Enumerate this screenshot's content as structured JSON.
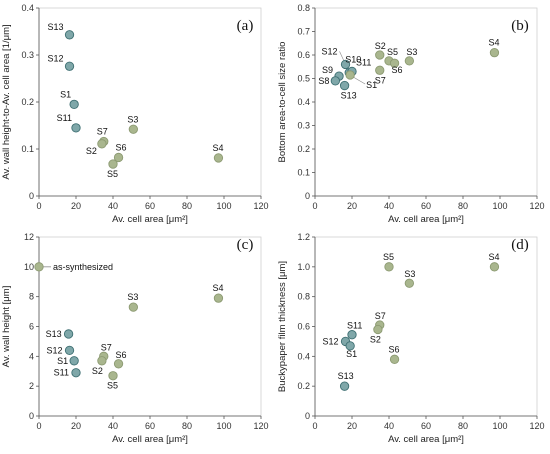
{
  "chart_data": [
    {
      "type": "scatter",
      "panel_label": "(a)",
      "xlabel": "Av. cell area [μm²]",
      "ylabel": "Av. wall height-to-Av. cell area [1/μm]",
      "xlim": [
        0,
        120
      ],
      "ylim": [
        0,
        0.4
      ],
      "xticks": [
        "0",
        "20",
        "40",
        "60",
        "80",
        "100",
        "120"
      ],
      "yticks": [
        "0",
        "0.1",
        "0.2",
        "0.3",
        "0.4"
      ],
      "grid": false,
      "series": [
        {
          "color": "#7fa7a9",
          "points": [
            {
              "label": "S13",
              "x": 16.5,
              "y": 0.343
            },
            {
              "label": "S12",
              "x": 16.5,
              "y": 0.276
            },
            {
              "label": "S1",
              "x": 19,
              "y": 0.195
            },
            {
              "label": "S11",
              "x": 20,
              "y": 0.145
            }
          ]
        },
        {
          "color": "#a9b68e",
          "points": [
            {
              "label": "S7",
              "x": 35,
              "y": 0.116
            },
            {
              "label": "S2",
              "x": 34,
              "y": 0.111
            },
            {
              "label": "S3",
              "x": 51,
              "y": 0.142
            },
            {
              "label": "S6",
              "x": 43,
              "y": 0.082
            },
            {
              "label": "S5",
              "x": 40,
              "y": 0.068
            },
            {
              "label": "S4",
              "x": 97,
              "y": 0.081
            }
          ]
        }
      ]
    },
    {
      "type": "scatter",
      "panel_label": "(b)",
      "xlabel": "Av. cell area [μm²]",
      "ylabel": "Bottom area-to-cell size ratio",
      "xlim": [
        0,
        120
      ],
      "ylim": [
        0,
        0.8
      ],
      "xticks": [
        "0",
        "20",
        "40",
        "60",
        "80",
        "100",
        "120"
      ],
      "yticks": [
        "0",
        "0.1",
        "0.2",
        "0.3",
        "0.4",
        "0.5",
        "0.6",
        "0.7",
        "0.8"
      ],
      "grid": false,
      "series": [
        {
          "color": "#7fa7a9",
          "points": [
            {
              "label": "S12",
              "x": 16.5,
              "y": 0.56
            },
            {
              "label": "S10",
              "x": 18.5,
              "y": 0.525
            },
            {
              "label": "S11",
              "x": 20,
              "y": 0.53
            },
            {
              "label": "S9",
              "x": 13,
              "y": 0.51
            },
            {
              "label": "S8",
              "x": 11,
              "y": 0.49
            },
            {
              "label": "S13",
              "x": 16,
              "y": 0.47
            }
          ]
        },
        {
          "color": "#a9b68e",
          "points": [
            {
              "label": "S2",
              "x": 35,
              "y": 0.6
            },
            {
              "label": "S5",
              "x": 40,
              "y": 0.575
            },
            {
              "label": "S6",
              "x": 43,
              "y": 0.565
            },
            {
              "label": "S3",
              "x": 51,
              "y": 0.575
            },
            {
              "label": "S7",
              "x": 35,
              "y": 0.535
            },
            {
              "label": "S1",
              "x": 19,
              "y": 0.515
            },
            {
              "label": "S4",
              "x": 97,
              "y": 0.61
            }
          ]
        }
      ]
    },
    {
      "type": "scatter",
      "panel_label": "(c)",
      "xlabel": "Av. cell area [μm²]",
      "ylabel": "Av. wall height [μm]",
      "xlim": [
        0,
        120
      ],
      "ylim": [
        0,
        12
      ],
      "xticks": [
        "0",
        "20",
        "40",
        "60",
        "80",
        "100",
        "120"
      ],
      "yticks": [
        "0",
        "2",
        "4",
        "6",
        "8",
        "10",
        "12"
      ],
      "grid": false,
      "annotations": [
        {
          "text": "as-synthesized",
          "x": 0,
          "y": 10
        }
      ],
      "series": [
        {
          "color": "#7fa7a9",
          "points": [
            {
              "label": "S13",
              "x": 16,
              "y": 5.5
            },
            {
              "label": "S12",
              "x": 16.5,
              "y": 4.4
            },
            {
              "label": "S1",
              "x": 19,
              "y": 3.7
            },
            {
              "label": "S11",
              "x": 20,
              "y": 2.9
            }
          ]
        },
        {
          "color": "#a9b68e",
          "points": [
            {
              "label": "",
              "x": 0,
              "y": 10
            },
            {
              "label": "S7",
              "x": 35,
              "y": 4.0
            },
            {
              "label": "S2",
              "x": 34,
              "y": 3.7
            },
            {
              "label": "S6",
              "x": 43,
              "y": 3.5
            },
            {
              "label": "S5",
              "x": 40,
              "y": 2.7
            },
            {
              "label": "S3",
              "x": 51,
              "y": 7.3
            },
            {
              "label": "S4",
              "x": 97,
              "y": 7.9
            }
          ]
        }
      ]
    },
    {
      "type": "scatter",
      "panel_label": "(d)",
      "xlabel": "Av. cell area [μm²]",
      "ylabel": "Buckypaper film thickness [μm]",
      "xlim": [
        0,
        120
      ],
      "ylim": [
        0,
        1.2
      ],
      "xticks": [
        "0",
        "20",
        "40",
        "60",
        "80",
        "100",
        "120"
      ],
      "yticks": [
        "0",
        "0.2",
        "0.4",
        "0.6",
        "0.8",
        "1.0",
        "1.2"
      ],
      "grid": false,
      "series": [
        {
          "color": "#7fa7a9",
          "points": [
            {
              "label": "S11",
              "x": 20,
              "y": 0.545
            },
            {
              "label": "S12",
              "x": 16.5,
              "y": 0.5
            },
            {
              "label": "S1",
              "x": 19,
              "y": 0.47
            },
            {
              "label": "S13",
              "x": 16,
              "y": 0.2
            }
          ]
        },
        {
          "color": "#a9b68e",
          "points": [
            {
              "label": "S7",
              "x": 35,
              "y": 0.61
            },
            {
              "label": "S2",
              "x": 34,
              "y": 0.58
            },
            {
              "label": "S5",
              "x": 40,
              "y": 1.0
            },
            {
              "label": "S3",
              "x": 51,
              "y": 0.89
            },
            {
              "label": "S6",
              "x": 43,
              "y": 0.38
            },
            {
              "label": "S4",
              "x": 97,
              "y": 1.0
            }
          ]
        }
      ]
    }
  ]
}
